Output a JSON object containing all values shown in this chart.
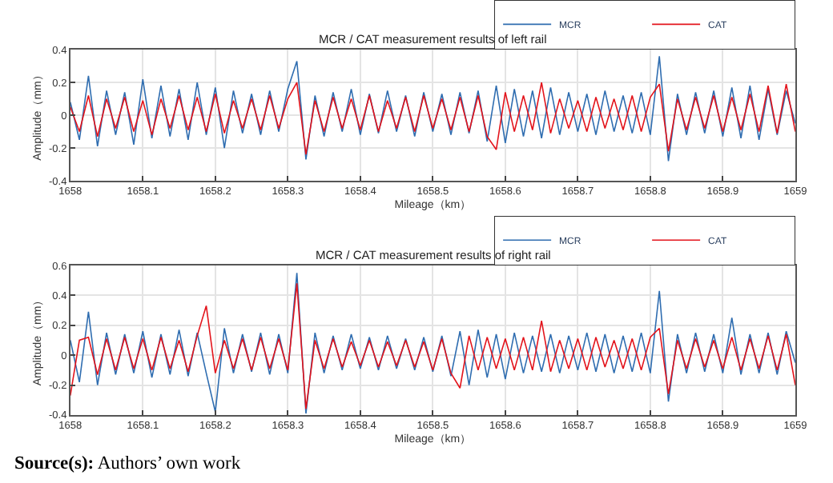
{
  "chart_data": [
    {
      "type": "line",
      "title": "MCR / CAT measurement results of left rail",
      "xlabel": "Mileage（km）",
      "ylabel": "Amplitude（mm）",
      "x": [
        1658,
        1658.0125,
        1658.025,
        1658.0375,
        1658.05,
        1658.0625,
        1658.075,
        1658.0875,
        1658.1,
        1658.1125,
        1658.125,
        1658.1375,
        1658.15,
        1658.1625,
        1658.175,
        1658.1875,
        1658.2,
        1658.2125,
        1658.225,
        1658.2375,
        1658.25,
        1658.2625,
        1658.275,
        1658.2875,
        1658.3,
        1658.3125,
        1658.325,
        1658.3375,
        1658.35,
        1658.3625,
        1658.375,
        1658.3875,
        1658.4,
        1658.4125,
        1658.425,
        1658.4375,
        1658.45,
        1658.4625,
        1658.475,
        1658.4875,
        1658.5,
        1658.5125,
        1658.525,
        1658.5375,
        1658.55,
        1658.5625,
        1658.575,
        1658.5875,
        1658.6,
        1658.6125,
        1658.625,
        1658.6375,
        1658.65,
        1658.6625,
        1658.675,
        1658.6875,
        1658.7,
        1658.7125,
        1658.725,
        1658.7375,
        1658.75,
        1658.7625,
        1658.775,
        1658.7875,
        1658.8,
        1658.8125,
        1658.825,
        1658.8375,
        1658.85,
        1658.8625,
        1658.875,
        1658.8875,
        1658.9,
        1658.9125,
        1658.925,
        1658.9375,
        1658.95,
        1658.9625,
        1658.975,
        1658.9875,
        1659
      ],
      "series": [
        {
          "name": "MCR",
          "color": "#2f6db0",
          "values": [
            0.08,
            -0.15,
            0.24,
            -0.19,
            0.15,
            -0.12,
            0.14,
            -0.18,
            0.22,
            -0.14,
            0.18,
            -0.13,
            0.16,
            -0.15,
            0.2,
            -0.12,
            0.17,
            -0.2,
            0.15,
            -0.11,
            0.13,
            -0.12,
            0.15,
            -0.1,
            0.16,
            0.33,
            -0.27,
            0.12,
            -0.13,
            0.14,
            -0.1,
            0.16,
            -0.12,
            0.13,
            -0.11,
            0.15,
            -0.1,
            0.12,
            -0.13,
            0.14,
            -0.1,
            0.13,
            -0.12,
            0.14,
            -0.11,
            0.15,
            -0.16,
            0.18,
            -0.17,
            0.16,
            -0.13,
            0.15,
            -0.14,
            0.17,
            -0.12,
            0.14,
            -0.1,
            0.13,
            -0.12,
            0.15,
            -0.1,
            0.12,
            -0.11,
            0.14,
            -0.12,
            0.36,
            -0.28,
            0.13,
            -0.12,
            0.14,
            -0.11,
            0.15,
            -0.13,
            0.17,
            -0.14,
            0.18,
            -0.15,
            0.16,
            -0.12,
            0.15,
            -0.05
          ]
        },
        {
          "name": "CAT",
          "color": "#e3141c",
          "values": [
            0.05,
            -0.1,
            0.12,
            -0.13,
            0.1,
            -0.08,
            0.11,
            -0.1,
            0.09,
            -0.12,
            0.1,
            -0.08,
            0.12,
            -0.09,
            0.11,
            -0.1,
            0.13,
            -0.11,
            0.09,
            -0.08,
            0.1,
            -0.09,
            0.12,
            -0.08,
            0.1,
            0.2,
            -0.24,
            0.09,
            -0.1,
            0.11,
            -0.08,
            0.1,
            -0.09,
            0.12,
            -0.1,
            0.09,
            -0.08,
            0.11,
            -0.1,
            0.12,
            -0.08,
            0.1,
            -0.09,
            0.11,
            -0.1,
            0.12,
            -0.13,
            -0.21,
            0.14,
            -0.1,
            0.12,
            -0.09,
            0.2,
            -0.11,
            0.1,
            -0.08,
            0.09,
            -0.1,
            0.11,
            -0.08,
            0.1,
            -0.09,
            0.12,
            -0.1,
            0.11,
            0.19,
            -0.22,
            0.1,
            -0.09,
            0.11,
            -0.08,
            0.12,
            -0.1,
            0.11,
            -0.09,
            0.13,
            -0.1,
            0.18,
            -0.11,
            0.19,
            -0.1
          ]
        }
      ],
      "xlim": [
        1658,
        1659
      ],
      "xticks": [
        1658,
        1658.1,
        1658.2,
        1658.3,
        1658.4,
        1658.5,
        1658.6,
        1658.7,
        1658.8,
        1658.9,
        1659
      ],
      "ylim": [
        -0.4,
        0.4
      ],
      "yticks": [
        -0.4,
        -0.2,
        0,
        0.2,
        0.4
      ],
      "grid": true,
      "legend": "top right",
      "line_style": "solid",
      "marker": "none"
    },
    {
      "type": "line",
      "title": "MCR / CAT measurement results of right rail",
      "xlabel": "Mileage（km）",
      "ylabel": "Amplitude（mm）",
      "x": [
        1658,
        1658.0125,
        1658.025,
        1658.0375,
        1658.05,
        1658.0625,
        1658.075,
        1658.0875,
        1658.1,
        1658.1125,
        1658.125,
        1658.1375,
        1658.15,
        1658.1625,
        1658.175,
        1658.1875,
        1658.2,
        1658.2125,
        1658.225,
        1658.2375,
        1658.25,
        1658.2625,
        1658.275,
        1658.2875,
        1658.3,
        1658.3125,
        1658.325,
        1658.3375,
        1658.35,
        1658.3625,
        1658.375,
        1658.3875,
        1658.4,
        1658.4125,
        1658.425,
        1658.4375,
        1658.45,
        1658.4625,
        1658.475,
        1658.4875,
        1658.5,
        1658.5125,
        1658.525,
        1658.5375,
        1658.55,
        1658.5625,
        1658.575,
        1658.5875,
        1658.6,
        1658.6125,
        1658.625,
        1658.6375,
        1658.65,
        1658.6625,
        1658.675,
        1658.6875,
        1658.7,
        1658.7125,
        1658.725,
        1658.7375,
        1658.75,
        1658.7625,
        1658.775,
        1658.7875,
        1658.8,
        1658.8125,
        1658.825,
        1658.8375,
        1658.85,
        1658.8625,
        1658.875,
        1658.8875,
        1658.9,
        1658.9125,
        1658.925,
        1658.9375,
        1658.95,
        1658.9625,
        1658.975,
        1658.9875,
        1659
      ],
      "series": [
        {
          "name": "MCR",
          "color": "#2f6db0",
          "values": [
            0.1,
            -0.18,
            0.29,
            -0.2,
            0.15,
            -0.13,
            0.14,
            -0.12,
            0.16,
            -0.15,
            0.14,
            -0.13,
            0.17,
            -0.14,
            0.15,
            -0.12,
            -0.38,
            0.18,
            -0.12,
            0.14,
            -0.11,
            0.15,
            -0.13,
            0.14,
            -0.12,
            0.55,
            -0.39,
            0.15,
            -0.12,
            0.13,
            -0.1,
            0.14,
            -0.09,
            0.12,
            -0.1,
            0.13,
            -0.09,
            0.11,
            -0.1,
            0.12,
            -0.11,
            0.13,
            -0.14,
            0.16,
            -0.2,
            0.17,
            -0.15,
            0.14,
            -0.16,
            0.15,
            -0.12,
            0.13,
            -0.11,
            0.14,
            -0.12,
            0.13,
            -0.1,
            0.15,
            -0.11,
            0.14,
            -0.12,
            0.13,
            -0.11,
            0.15,
            -0.12,
            0.43,
            -0.31,
            0.14,
            -0.12,
            0.15,
            -0.11,
            0.14,
            -0.12,
            0.25,
            -0.13,
            0.14,
            -0.12,
            0.15,
            -0.13,
            0.16,
            -0.05
          ]
        },
        {
          "name": "CAT",
          "color": "#e3141c",
          "values": [
            -0.27,
            0.1,
            0.12,
            -0.13,
            0.11,
            -0.1,
            0.12,
            -0.09,
            0.11,
            -0.1,
            0.12,
            -0.09,
            0.1,
            -0.11,
            0.13,
            0.33,
            -0.12,
            0.1,
            -0.09,
            0.11,
            -0.1,
            0.12,
            -0.09,
            0.11,
            -0.1,
            0.48,
            -0.36,
            0.1,
            -0.09,
            0.11,
            -0.08,
            0.09,
            -0.07,
            0.1,
            -0.08,
            0.09,
            -0.07,
            0.1,
            -0.08,
            0.09,
            -0.1,
            0.11,
            -0.12,
            -0.22,
            0.13,
            -0.1,
            0.12,
            -0.09,
            0.11,
            -0.1,
            0.12,
            -0.1,
            0.23,
            -0.11,
            0.1,
            -0.09,
            0.11,
            -0.1,
            0.12,
            -0.08,
            0.1,
            -0.09,
            0.11,
            -0.1,
            0.12,
            0.18,
            -0.26,
            0.1,
            -0.09,
            0.11,
            -0.08,
            0.1,
            -0.09,
            0.12,
            -0.1,
            0.11,
            -0.09,
            0.13,
            -0.1,
            0.14,
            -0.2
          ]
        }
      ],
      "xlim": [
        1658,
        1659
      ],
      "xticks": [
        1658,
        1658.1,
        1658.2,
        1658.3,
        1658.4,
        1658.5,
        1658.6,
        1658.7,
        1658.8,
        1658.9,
        1659
      ],
      "ylim": [
        -0.4,
        0.6
      ],
      "yticks": [
        -0.4,
        -0.2,
        0,
        0.2,
        0.4,
        0.6
      ],
      "grid": true,
      "legend": "top right",
      "line_style": "solid",
      "marker": "none",
      "annotations": [
        "Source(s): Authors’ own work"
      ]
    }
  ]
}
